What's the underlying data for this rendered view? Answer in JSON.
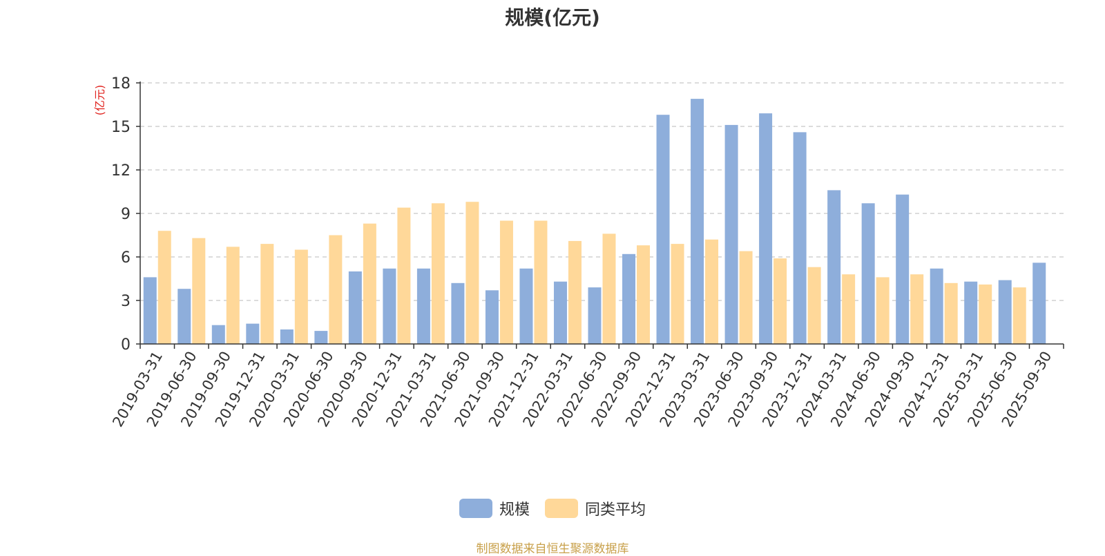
{
  "chart_data": {
    "type": "bar",
    "title": "规模(亿元)",
    "ylabel": "(亿元)",
    "xlabel": "",
    "ylim": [
      0,
      18
    ],
    "yticks": [
      0,
      3,
      6,
      9,
      12,
      15,
      18
    ],
    "grid": true,
    "legend_position": "bottom",
    "categories": [
      "2019-03-31",
      "2019-06-30",
      "2019-09-30",
      "2019-12-31",
      "2020-03-31",
      "2020-06-30",
      "2020-09-30",
      "2020-12-31",
      "2021-03-31",
      "2021-06-30",
      "2021-09-30",
      "2021-12-31",
      "2022-03-31",
      "2022-06-30",
      "2022-09-30",
      "2022-12-31",
      "2023-03-31",
      "2023-06-30",
      "2023-09-30",
      "2023-12-31",
      "2024-03-31",
      "2024-06-30",
      "2024-09-30",
      "2024-12-31",
      "2025-03-31",
      "2025-06-30",
      "2025-09-30"
    ],
    "series": [
      {
        "name": "规模",
        "color": "#8eaedb",
        "values": [
          4.6,
          3.8,
          1.3,
          1.4,
          1.0,
          0.9,
          5.0,
          5.2,
          5.2,
          4.2,
          3.7,
          5.2,
          4.3,
          3.9,
          6.2,
          15.8,
          16.9,
          15.1,
          15.9,
          14.6,
          10.6,
          9.7,
          10.3,
          5.2,
          4.3,
          4.4,
          5.6
        ]
      },
      {
        "name": "同类平均",
        "color": "#ffd899",
        "values": [
          7.8,
          7.3,
          6.7,
          6.9,
          6.5,
          7.5,
          8.3,
          9.4,
          9.7,
          9.8,
          8.5,
          8.5,
          7.1,
          7.6,
          6.8,
          6.9,
          7.2,
          6.4,
          5.9,
          5.3,
          4.8,
          4.6,
          4.8,
          4.2,
          4.1,
          3.9,
          null
        ]
      }
    ]
  },
  "source_note": "制图数据来自恒生聚源数据库"
}
